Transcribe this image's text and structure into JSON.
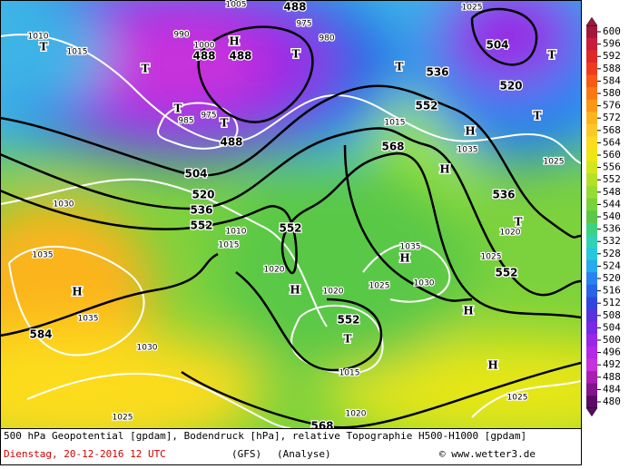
{
  "legend": {
    "values": [
      600,
      596,
      592,
      588,
      584,
      580,
      576,
      572,
      568,
      564,
      560,
      556,
      552,
      548,
      544,
      540,
      536,
      532,
      528,
      524,
      520,
      516,
      512,
      508,
      504,
      500,
      496,
      492,
      488,
      484,
      480
    ],
    "colors": [
      "#a0183c",
      "#c81e3c",
      "#e02828",
      "#f03c1e",
      "#f85a14",
      "#fa7814",
      "#fc9614",
      "#fcb41e",
      "#fcc828",
      "#fcdc1e",
      "#f0e614",
      "#d2e61e",
      "#b4e028",
      "#96dc32",
      "#78d23c",
      "#5ac846",
      "#3cd282",
      "#32d2b4",
      "#28c8dc",
      "#28aaf0",
      "#2882f0",
      "#2864e6",
      "#3246dc",
      "#5a32dc",
      "#7828e6",
      "#9628e6",
      "#b428e6",
      "#c832dc",
      "#aa1eb4",
      "#82148c",
      "#5a0a64"
    ]
  },
  "map": {
    "geopotential_labels": [
      "488",
      "488",
      "488",
      "488",
      "504",
      "520",
      "536",
      "552",
      "536",
      "552",
      "568",
      "552",
      "552",
      "504",
      "520",
      "536",
      "552",
      "584",
      "568"
    ],
    "pressure_labels": [
      "1010",
      "1015",
      "990",
      "1000",
      "985",
      "975",
      "980",
      "1015",
      "1035",
      "1025",
      "1020",
      "1025",
      "1030",
      "1035",
      "1035",
      "1030",
      "1025",
      "1015",
      "1020",
      "1020",
      "1025",
      "1030",
      "1035",
      "1015",
      "1020",
      "1025",
      "1025",
      "975",
      "1010",
      "1005"
    ],
    "centers": [
      "T",
      "T",
      "T",
      "T",
      "T",
      "T",
      "T",
      "T",
      "T",
      "T",
      "H",
      "H",
      "H",
      "H",
      "H",
      "H",
      "H",
      "H"
    ]
  },
  "caption": {
    "line1": "500 hPa Geopotential [gpdam], Bodendruck [hPa], relative Topographie H500-H1000 [gpdam]",
    "date": "Dienstag, 20-12-2016  12 UTC",
    "model": "(GFS)",
    "run": "(Analyse)",
    "source": "© www.wetter3.de"
  }
}
